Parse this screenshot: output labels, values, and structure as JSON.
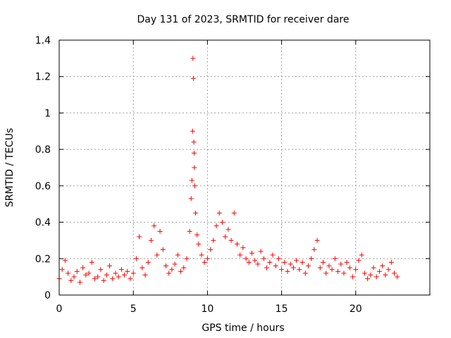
{
  "chart_data": {
    "type": "scatter",
    "title": "Day 131 of 2023, SRMTID for receiver dare",
    "xlabel": "GPS time / hours",
    "ylabel": "SRMTID / TECUs",
    "xlim": [
      0,
      25
    ],
    "ylim": [
      0,
      1.4
    ],
    "xticks": [
      0,
      5,
      10,
      15,
      20
    ],
    "yticks": [
      0,
      0.2,
      0.4,
      0.6,
      0.8,
      1,
      1.2,
      1.4
    ],
    "xtick_labels": [
      "0",
      "5",
      "10",
      "15",
      "20"
    ],
    "ytick_labels": [
      "0",
      "0.2",
      "0.4",
      "0.6",
      "0.8",
      "1",
      "1.2",
      "1.4"
    ],
    "grid": true,
    "marker": "plus",
    "marker_color": "#ff0000",
    "series": [
      {
        "name": "SRMTID",
        "x": [
          0.0,
          0.2,
          0.4,
          0.6,
          0.8,
          1.0,
          1.2,
          1.4,
          1.6,
          1.8,
          2.0,
          2.2,
          2.4,
          2.6,
          2.8,
          3.0,
          3.2,
          3.4,
          3.6,
          3.8,
          4.0,
          4.2,
          4.4,
          4.6,
          4.8,
          5.0,
          5.2,
          5.4,
          5.6,
          5.8,
          6.0,
          6.2,
          6.4,
          6.6,
          6.8,
          7.0,
          7.2,
          7.4,
          7.6,
          7.8,
          8.0,
          8.2,
          8.4,
          8.6,
          8.8,
          8.9,
          8.95,
          9.0,
          9.02,
          9.05,
          9.08,
          9.1,
          9.12,
          9.15,
          9.2,
          9.3,
          9.4,
          9.6,
          9.8,
          10.0,
          10.2,
          10.4,
          10.6,
          10.8,
          11.0,
          11.2,
          11.4,
          11.6,
          11.8,
          12.0,
          12.2,
          12.4,
          12.6,
          12.8,
          13.0,
          13.2,
          13.4,
          13.6,
          13.8,
          14.0,
          14.2,
          14.4,
          14.6,
          14.8,
          15.0,
          15.2,
          15.4,
          15.6,
          15.8,
          16.0,
          16.2,
          16.4,
          16.6,
          16.8,
          17.0,
          17.2,
          17.4,
          17.6,
          17.8,
          18.0,
          18.2,
          18.4,
          18.6,
          18.8,
          19.0,
          19.2,
          19.4,
          19.6,
          19.8,
          20.0,
          20.2,
          20.4,
          20.6,
          20.8,
          21.0,
          21.2,
          21.4,
          21.6,
          21.8,
          22.0,
          22.2,
          22.4,
          22.6,
          22.8
        ],
        "y": [
          0.09,
          0.14,
          0.19,
          0.12,
          0.08,
          0.1,
          0.13,
          0.07,
          0.15,
          0.11,
          0.12,
          0.18,
          0.09,
          0.1,
          0.14,
          0.08,
          0.11,
          0.16,
          0.09,
          0.12,
          0.1,
          0.14,
          0.11,
          0.13,
          0.09,
          0.12,
          0.2,
          0.32,
          0.15,
          0.11,
          0.18,
          0.3,
          0.38,
          0.22,
          0.35,
          0.25,
          0.16,
          0.12,
          0.14,
          0.17,
          0.22,
          0.13,
          0.15,
          0.2,
          0.35,
          0.53,
          0.63,
          0.9,
          1.3,
          1.19,
          0.84,
          0.78,
          0.7,
          0.6,
          0.45,
          0.33,
          0.28,
          0.22,
          0.18,
          0.2,
          0.25,
          0.3,
          0.38,
          0.45,
          0.4,
          0.32,
          0.36,
          0.3,
          0.45,
          0.28,
          0.22,
          0.26,
          0.2,
          0.18,
          0.23,
          0.19,
          0.17,
          0.24,
          0.2,
          0.15,
          0.18,
          0.22,
          0.16,
          0.2,
          0.14,
          0.18,
          0.13,
          0.17,
          0.15,
          0.19,
          0.14,
          0.18,
          0.12,
          0.16,
          0.2,
          0.25,
          0.3,
          0.15,
          0.18,
          0.12,
          0.16,
          0.14,
          0.2,
          0.13,
          0.17,
          0.12,
          0.18,
          0.15,
          0.1,
          0.14,
          0.19,
          0.22,
          0.12,
          0.09,
          0.11,
          0.15,
          0.1,
          0.13,
          0.16,
          0.11,
          0.14,
          0.18,
          0.12,
          0.1
        ]
      }
    ]
  }
}
